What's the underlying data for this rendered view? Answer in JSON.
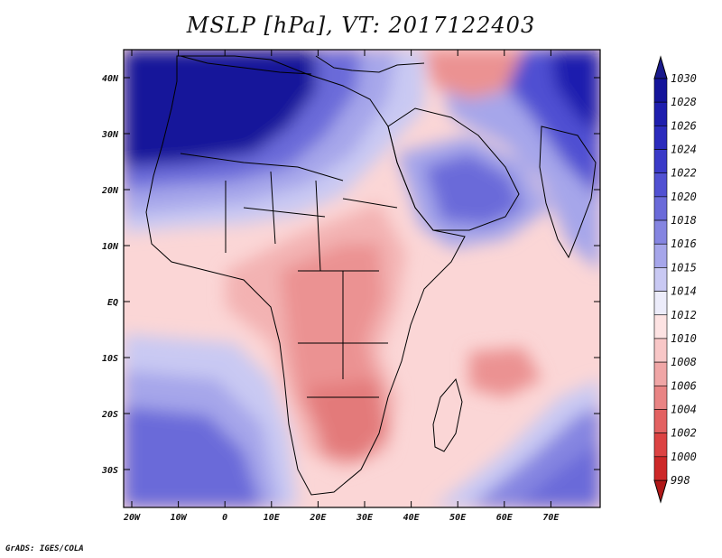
{
  "title": "MSLP [hPa], VT: 2017122403",
  "credit": "GrADS: IGES/COLA",
  "lat_ticks": [
    "40N",
    "30N",
    "20N",
    "10N",
    "EQ",
    "10S",
    "20S",
    "30S"
  ],
  "lon_ticks": [
    "20W",
    "10W",
    "0",
    "10E",
    "20E",
    "30E",
    "40E",
    "50E",
    "60E",
    "70E"
  ],
  "colorbar": {
    "levels": [
      "1030",
      "1028",
      "1026",
      "1024",
      "1022",
      "1020",
      "1018",
      "1016",
      "1015",
      "1014",
      "1012",
      "1010",
      "1008",
      "1006",
      "1004",
      "1002",
      "1000",
      "998"
    ],
    "colors": [
      "#14149a",
      "#1e1eae",
      "#2b2bbd",
      "#3a3ac8",
      "#5050d2",
      "#6a6ad9",
      "#8585e1",
      "#a6a6ea",
      "#c9c9f3",
      "#ececfa",
      "#fde3e3",
      "#f8c7c7",
      "#f0a6a6",
      "#e98484",
      "#e36262",
      "#dc4343",
      "#cd2828",
      "#a81717"
    ],
    "top_arrow": "#1a1a8c",
    "bottom_arrow": "#b01818"
  },
  "colors": {
    "deep_blue": "#14149a",
    "mid_blue": "#6a6ad9",
    "light_blue": "#a6a6ea",
    "pale_blue": "#c9c9f3",
    "white": "#fdfdff",
    "pale_red": "#fbd6d6",
    "light_red": "#f3b2b2",
    "mid_red": "#eb9292",
    "dark_red": "#e37a7a",
    "coast": "#000000"
  }
}
